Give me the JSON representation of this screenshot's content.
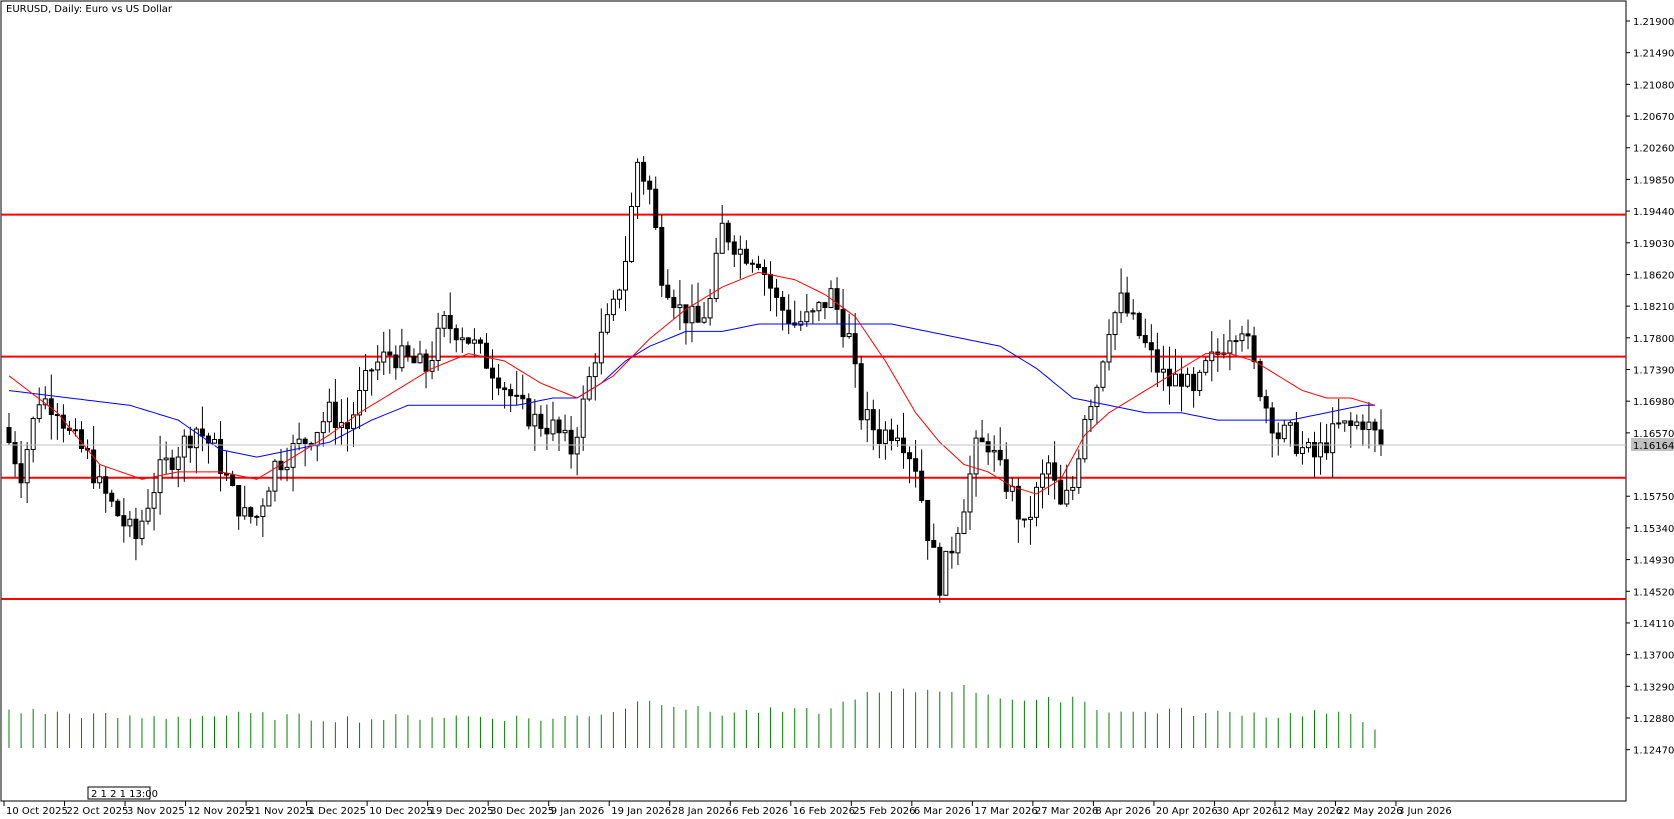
{
  "title": "EURUSD, Daily:  Euro vs US Dollar",
  "current_price_label": "1.16164",
  "period_sep_text": "2 1 2 1 13:00",
  "colors": {
    "ma_fast": "#ff0000",
    "ma_slow": "#0000ff",
    "levels": "#ff0000",
    "volume": "#008000",
    "bull_fill": "#ffffff",
    "bear_fill": "#000000",
    "current_line": "#c0c0c0"
  },
  "chart_data": {
    "type": "candlestick",
    "symbol": "EURUSD",
    "timeframe": "Daily",
    "ylim": [
      1.1206,
      1.2215
    ],
    "y_ticks": [
      "1.21900",
      "1.21490",
      "1.21080",
      "1.20670",
      "1.20260",
      "1.19850",
      "1.19440",
      "1.19030",
      "1.18620",
      "1.18210",
      "1.17800",
      "1.17390",
      "1.16980",
      "1.16570",
      "1.16164",
      "1.15750",
      "1.15340",
      "1.14930",
      "1.14520",
      "1.14110",
      "1.13700",
      "1.13290",
      "1.12880",
      "1.12470"
    ],
    "x_tick_labels": [
      "10 Oct 2025",
      "22 Oct 2025",
      "3 Nov 2025",
      "12 Nov 2025",
      "21 Nov 2025",
      "1 Dec 2025",
      "10 Dec 2025",
      "19 Dec 2025",
      "30 Dec 2025",
      "9 Jan 2026",
      "19 Jan 2026",
      "28 Jan 2026",
      "6 Feb 2026",
      "16 Feb 2026",
      "25 Feb 2026",
      "6 Mar 2026",
      "17 Mar 2026",
      "27 Mar 2026",
      "8 Apr 2026",
      "20 Apr 2026",
      "30 Apr 2026",
      "12 May 2026",
      "22 May 2026",
      "3 Jun 2026"
    ],
    "horizontal_levels": [
      1.1928,
      1.1736,
      1.1572,
      1.1408
    ],
    "current_price": 1.16164,
    "close_anchors": [
      [
        0,
        1.162
      ],
      [
        2,
        1.158
      ],
      [
        5,
        1.168
      ],
      [
        8,
        1.167
      ],
      [
        10,
        1.163
      ],
      [
        13,
        1.16
      ],
      [
        15,
        1.156
      ],
      [
        19,
        1.151
      ],
      [
        21,
        1.149
      ],
      [
        23,
        1.154
      ],
      [
        25,
        1.158
      ],
      [
        28,
        1.161
      ],
      [
        31,
        1.164
      ],
      [
        34,
        1.161
      ],
      [
        37,
        1.155
      ],
      [
        39,
        1.152
      ],
      [
        41,
        1.152
      ],
      [
        44,
        1.159
      ],
      [
        47,
        1.161
      ],
      [
        50,
        1.163
      ],
      [
        53,
        1.166
      ],
      [
        56,
        1.164
      ],
      [
        60,
        1.172
      ],
      [
        63,
        1.174
      ],
      [
        66,
        1.173
      ],
      [
        69,
        1.172
      ],
      [
        72,
        1.178
      ],
      [
        75,
        1.177
      ],
      [
        78,
        1.174
      ],
      [
        81,
        1.171
      ],
      [
        84,
        1.167
      ],
      [
        87,
        1.165
      ],
      [
        90,
        1.164
      ],
      [
        93,
        1.161
      ],
      [
        95,
        1.167
      ],
      [
        97,
        1.174
      ],
      [
        100,
        1.18
      ],
      [
        102,
        1.187
      ],
      [
        104,
        1.2
      ],
      [
        106,
        1.196
      ],
      [
        108,
        1.185
      ],
      [
        111,
        1.18
      ],
      [
        114,
        1.178
      ],
      [
        116,
        1.181
      ],
      [
        118,
        1.191
      ],
      [
        121,
        1.188
      ],
      [
        124,
        1.187
      ],
      [
        127,
        1.181
      ],
      [
        130,
        1.178
      ],
      [
        133,
        1.179
      ],
      [
        136,
        1.182
      ],
      [
        139,
        1.176
      ],
      [
        141,
        1.166
      ],
      [
        144,
        1.163
      ],
      [
        147,
        1.164
      ],
      [
        150,
        1.159
      ],
      [
        152,
        1.15
      ],
      [
        154,
        1.143
      ],
      [
        156,
        1.148
      ],
      [
        158,
        1.154
      ],
      [
        160,
        1.161
      ],
      [
        162,
        1.162
      ],
      [
        164,
        1.158
      ],
      [
        166,
        1.155
      ],
      [
        168,
        1.15
      ],
      [
        170,
        1.155
      ],
      [
        172,
        1.159
      ],
      [
        174,
        1.153
      ],
      [
        176,
        1.156
      ],
      [
        178,
        1.166
      ],
      [
        180,
        1.17
      ],
      [
        182,
        1.178
      ],
      [
        184,
        1.181
      ],
      [
        186,
        1.178
      ],
      [
        188,
        1.175
      ],
      [
        190,
        1.172
      ],
      [
        192,
        1.17
      ],
      [
        194,
        1.171
      ],
      [
        196,
        1.168
      ],
      [
        198,
        1.172
      ],
      [
        200,
        1.174
      ],
      [
        202,
        1.177
      ],
      [
        204,
        1.178
      ],
      [
        206,
        1.172
      ],
      [
        208,
        1.167
      ],
      [
        210,
        1.163
      ],
      [
        212,
        1.163
      ],
      [
        214,
        1.161
      ],
      [
        216,
        1.16
      ],
      [
        218,
        1.162
      ],
      [
        220,
        1.164
      ],
      [
        222,
        1.164
      ],
      [
        224,
        1.165
      ],
      [
        226,
        1.163
      ],
      [
        227,
        1.1616
      ]
    ],
    "ma_fast_anchors": [
      [
        0,
        1.171
      ],
      [
        8,
        1.166
      ],
      [
        15,
        1.159
      ],
      [
        22,
        1.157
      ],
      [
        28,
        1.158
      ],
      [
        35,
        1.158
      ],
      [
        41,
        1.157
      ],
      [
        47,
        1.16
      ],
      [
        53,
        1.163
      ],
      [
        58,
        1.166
      ],
      [
        62,
        1.168
      ],
      [
        66,
        1.17
      ],
      [
        70,
        1.172
      ],
      [
        76,
        1.174
      ],
      [
        82,
        1.173
      ],
      [
        88,
        1.17
      ],
      [
        94,
        1.168
      ],
      [
        100,
        1.171
      ],
      [
        106,
        1.176
      ],
      [
        112,
        1.18
      ],
      [
        118,
        1.183
      ],
      [
        124,
        1.185
      ],
      [
        130,
        1.184
      ],
      [
        135,
        1.182
      ],
      [
        140,
        1.179
      ],
      [
        145,
        1.173
      ],
      [
        150,
        1.166
      ],
      [
        154,
        1.162
      ],
      [
        158,
        1.159
      ],
      [
        162,
        1.158
      ],
      [
        166,
        1.156
      ],
      [
        170,
        1.155
      ],
      [
        174,
        1.157
      ],
      [
        178,
        1.163
      ],
      [
        182,
        1.166
      ],
      [
        186,
        1.168
      ],
      [
        190,
        1.17
      ],
      [
        194,
        1.172
      ],
      [
        198,
        1.174
      ],
      [
        202,
        1.174
      ],
      [
        206,
        1.173
      ],
      [
        210,
        1.171
      ],
      [
        214,
        1.169
      ],
      [
        218,
        1.168
      ],
      [
        222,
        1.168
      ],
      [
        226,
        1.167
      ]
    ],
    "ma_slow_anchors": [
      [
        0,
        1.169
      ],
      [
        10,
        1.168
      ],
      [
        20,
        1.167
      ],
      [
        28,
        1.165
      ],
      [
        35,
        1.161
      ],
      [
        41,
        1.16
      ],
      [
        47,
        1.161
      ],
      [
        53,
        1.162
      ],
      [
        60,
        1.165
      ],
      [
        66,
        1.167
      ],
      [
        72,
        1.167
      ],
      [
        78,
        1.167
      ],
      [
        84,
        1.167
      ],
      [
        90,
        1.168
      ],
      [
        94,
        1.168
      ],
      [
        98,
        1.17
      ],
      [
        102,
        1.173
      ],
      [
        106,
        1.175
      ],
      [
        112,
        1.177
      ],
      [
        118,
        1.177
      ],
      [
        124,
        1.178
      ],
      [
        130,
        1.178
      ],
      [
        136,
        1.178
      ],
      [
        140,
        1.178
      ],
      [
        146,
        1.178
      ],
      [
        152,
        1.177
      ],
      [
        158,
        1.176
      ],
      [
        164,
        1.175
      ],
      [
        170,
        1.172
      ],
      [
        176,
        1.168
      ],
      [
        182,
        1.167
      ],
      [
        188,
        1.166
      ],
      [
        194,
        1.166
      ],
      [
        200,
        1.165
      ],
      [
        206,
        1.165
      ],
      [
        212,
        1.165
      ],
      [
        218,
        1.166
      ],
      [
        224,
        1.167
      ],
      [
        226,
        1.167
      ]
    ],
    "volume_anchors": [
      [
        0,
        38
      ],
      [
        10,
        34
      ],
      [
        20,
        30
      ],
      [
        30,
        32
      ],
      [
        40,
        33
      ],
      [
        50,
        30
      ],
      [
        60,
        29
      ],
      [
        70,
        32
      ],
      [
        80,
        31
      ],
      [
        90,
        29
      ],
      [
        100,
        37
      ],
      [
        106,
        50
      ],
      [
        112,
        40
      ],
      [
        118,
        35
      ],
      [
        124,
        37
      ],
      [
        130,
        36
      ],
      [
        136,
        38
      ],
      [
        140,
        52
      ],
      [
        146,
        55
      ],
      [
        152,
        58
      ],
      [
        158,
        60
      ],
      [
        164,
        52
      ],
      [
        170,
        45
      ],
      [
        176,
        52
      ],
      [
        180,
        40
      ],
      [
        186,
        35
      ],
      [
        192,
        38
      ],
      [
        198,
        34
      ],
      [
        204,
        36
      ],
      [
        210,
        32
      ],
      [
        216,
        36
      ],
      [
        222,
        31
      ],
      [
        226,
        22
      ],
      [
        227,
        6
      ]
    ]
  }
}
